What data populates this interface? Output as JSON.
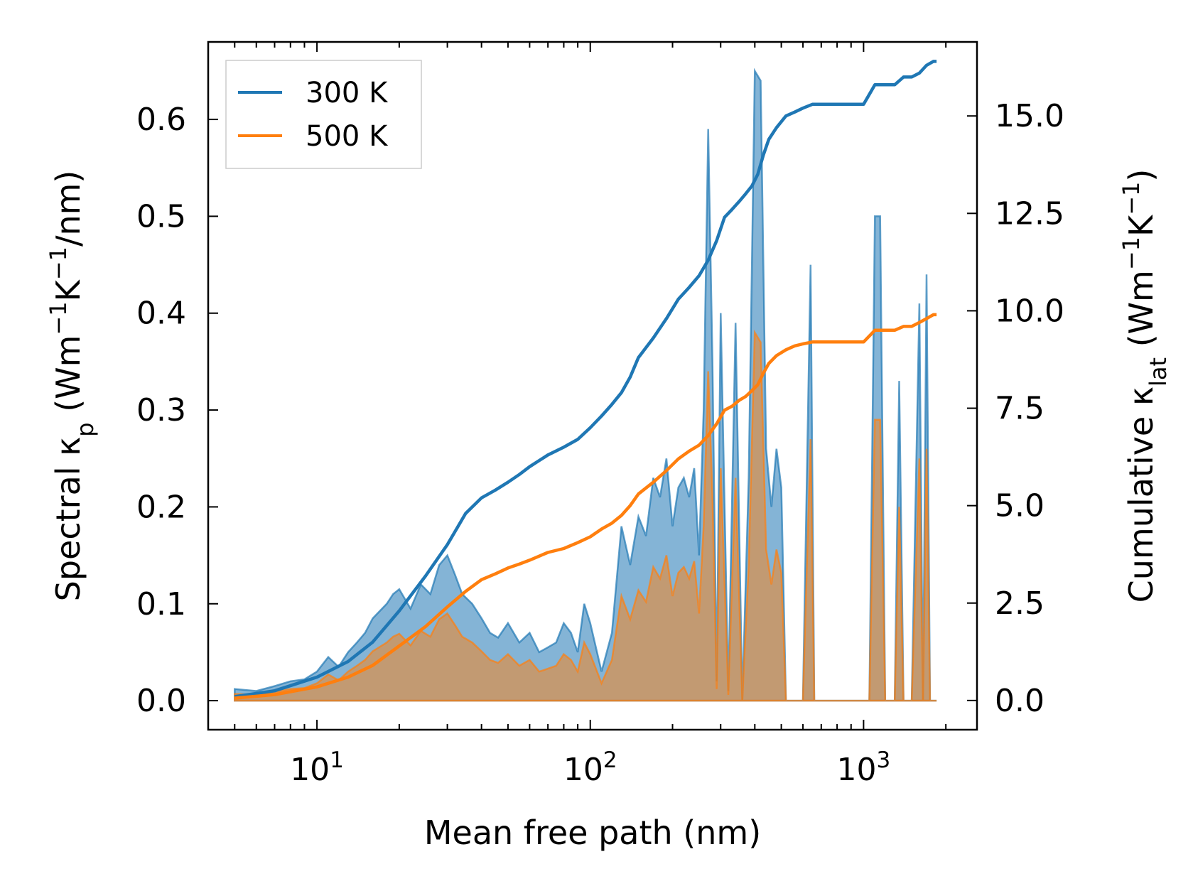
{
  "chart_data": {
    "type": "line",
    "title": "",
    "xlabel": "Mean free path (nm)",
    "ylabel_left": {
      "main": "Spectral κ",
      "sub": "p",
      "unit_open": " (Wm",
      "sup1": "−1",
      "mid": "K",
      "sup2": "−1",
      "unit_close": "/nm)"
    },
    "ylabel_right": {
      "main": "Cumulative κ",
      "sub": "lat",
      "unit_open": " (Wm",
      "sup1": "−1",
      "mid": "K",
      "sup2": "−1",
      "unit_close": ")"
    },
    "x_scale": "log",
    "xlim": [
      4.0,
      2600
    ],
    "ylim_left": [
      -0.03,
      0.68
    ],
    "ylim_right": [
      -0.75,
      16.9
    ],
    "x_ticks": [
      {
        "value": 10,
        "base": "10",
        "exp": "1"
      },
      {
        "value": 100,
        "base": "10",
        "exp": "2"
      },
      {
        "value": 1000,
        "base": "10",
        "exp": "3"
      }
    ],
    "y_ticks_left": [
      "0.0",
      "0.1",
      "0.2",
      "0.3",
      "0.4",
      "0.5",
      "0.6"
    ],
    "y_ticks_right": [
      "0.0",
      "2.5",
      "5.0",
      "7.5",
      "10.0",
      "12.5",
      "15.0"
    ],
    "legend": {
      "position": "top-left",
      "entries": [
        "300 K",
        "500 K"
      ]
    },
    "series": [
      {
        "name": "300 K",
        "color": "#1f77b4",
        "fill_color": "#1f77b4",
        "spectral": {
          "x": [
            5,
            6,
            7,
            8,
            9,
            10,
            11,
            12,
            13,
            14,
            15,
            16,
            18,
            19,
            20,
            22,
            24,
            26,
            28,
            30,
            32,
            34,
            37,
            40,
            43,
            46,
            50,
            55,
            60,
            65,
            70,
            75,
            80,
            85,
            90,
            95,
            100,
            110,
            120,
            130,
            140,
            150,
            160,
            170,
            180,
            190,
            200,
            210,
            220,
            230,
            240,
            250,
            260,
            270,
            280,
            290,
            300,
            320,
            340,
            360,
            380,
            400,
            420,
            440,
            460,
            480,
            500,
            520,
            550,
            600,
            640,
            660,
            680,
            700,
            750,
            800,
            900,
            1000,
            1050,
            1100,
            1150,
            1200,
            1250,
            1300,
            1350,
            1400,
            1450,
            1500,
            1600,
            1650,
            1700,
            1750,
            1800,
            1850
          ],
          "y": [
            0.012,
            0.01,
            0.015,
            0.02,
            0.022,
            0.03,
            0.045,
            0.035,
            0.05,
            0.06,
            0.07,
            0.085,
            0.1,
            0.11,
            0.115,
            0.095,
            0.12,
            0.11,
            0.14,
            0.15,
            0.13,
            0.11,
            0.1,
            0.085,
            0.07,
            0.065,
            0.08,
            0.06,
            0.07,
            0.05,
            0.055,
            0.06,
            0.08,
            0.07,
            0.05,
            0.1,
            0.08,
            0.03,
            0.07,
            0.18,
            0.14,
            0.19,
            0.17,
            0.23,
            0.21,
            0.25,
            0.18,
            0.22,
            0.23,
            0.21,
            0.24,
            0.15,
            0.3,
            0.59,
            0.35,
            0.02,
            0.4,
            0.01,
            0.39,
            0.0,
            0.23,
            0.65,
            0.64,
            0.26,
            0.2,
            0.26,
            0.22,
            0.0,
            0.0,
            0.0,
            0.45,
            0.0,
            0.0,
            0.0,
            0.0,
            0.0,
            0.0,
            0.0,
            0.0,
            0.5,
            0.5,
            0.0,
            0.0,
            0.0,
            0.33,
            0.0,
            0.0,
            0.0,
            0.41,
            0.0,
            0.44,
            0.0,
            0.0,
            0.0
          ]
        },
        "cumulative": {
          "x": [
            5,
            7,
            10,
            13,
            16,
            20,
            25,
            30,
            35,
            40,
            45,
            50,
            55,
            60,
            70,
            80,
            90,
            100,
            110,
            120,
            130,
            140,
            150,
            170,
            190,
            210,
            230,
            250,
            270,
            290,
            310,
            330,
            350,
            370,
            390,
            410,
            430,
            450,
            480,
            520,
            560,
            600,
            650,
            700,
            800,
            900,
            1000,
            1100,
            1200,
            1300,
            1400,
            1500,
            1600,
            1700,
            1800,
            1850
          ],
          "y": [
            0.1,
            0.25,
            0.6,
            1.0,
            1.5,
            2.3,
            3.2,
            4.0,
            4.8,
            5.2,
            5.4,
            5.6,
            5.8,
            6.0,
            6.3,
            6.5,
            6.7,
            7.0,
            7.3,
            7.6,
            7.9,
            8.3,
            8.8,
            9.3,
            9.8,
            10.3,
            10.6,
            10.9,
            11.3,
            11.8,
            12.4,
            12.6,
            12.8,
            13.0,
            13.2,
            13.5,
            14.0,
            14.4,
            14.7,
            15.0,
            15.1,
            15.2,
            15.3,
            15.3,
            15.3,
            15.3,
            15.3,
            15.8,
            15.8,
            15.8,
            16.0,
            16.0,
            16.1,
            16.3,
            16.4,
            16.4
          ]
        }
      },
      {
        "name": "500 K",
        "color": "#ff7f0e",
        "fill_color": "#ff7f0e",
        "spectral": {
          "x": [
            5,
            6,
            7,
            8,
            9,
            10,
            11,
            12,
            13,
            14,
            15,
            16,
            18,
            19,
            20,
            22,
            24,
            26,
            28,
            30,
            32,
            34,
            37,
            40,
            43,
            46,
            50,
            55,
            60,
            65,
            70,
            75,
            80,
            85,
            90,
            95,
            100,
            110,
            120,
            130,
            140,
            150,
            160,
            170,
            180,
            190,
            200,
            210,
            220,
            230,
            240,
            250,
            260,
            270,
            280,
            290,
            300,
            320,
            340,
            360,
            380,
            400,
            420,
            440,
            460,
            480,
            500,
            520,
            550,
            600,
            640,
            660,
            680,
            700,
            750,
            800,
            900,
            1000,
            1050,
            1100,
            1150,
            1200,
            1250,
            1300,
            1350,
            1400,
            1450,
            1500,
            1600,
            1650,
            1700,
            1750,
            1800,
            1850
          ],
          "y": [
            0.007,
            0.006,
            0.009,
            0.012,
            0.013,
            0.018,
            0.027,
            0.021,
            0.03,
            0.036,
            0.042,
            0.051,
            0.06,
            0.066,
            0.069,
            0.057,
            0.072,
            0.066,
            0.084,
            0.09,
            0.078,
            0.066,
            0.06,
            0.051,
            0.042,
            0.039,
            0.048,
            0.036,
            0.042,
            0.03,
            0.033,
            0.036,
            0.048,
            0.042,
            0.03,
            0.06,
            0.048,
            0.018,
            0.042,
            0.108,
            0.084,
            0.114,
            0.102,
            0.138,
            0.126,
            0.15,
            0.108,
            0.132,
            0.138,
            0.126,
            0.144,
            0.09,
            0.18,
            0.34,
            0.21,
            0.012,
            0.24,
            0.006,
            0.23,
            0.0,
            0.14,
            0.38,
            0.37,
            0.156,
            0.12,
            0.156,
            0.132,
            0.0,
            0.0,
            0.0,
            0.27,
            0.0,
            0.0,
            0.0,
            0.0,
            0.0,
            0.0,
            0.0,
            0.0,
            0.29,
            0.29,
            0.0,
            0.0,
            0.0,
            0.2,
            0.0,
            0.0,
            0.0,
            0.25,
            0.0,
            0.26,
            0.0,
            0.0,
            0.0
          ]
        },
        "cumulative": {
          "x": [
            5,
            7,
            10,
            13,
            16,
            20,
            25,
            30,
            35,
            40,
            45,
            50,
            55,
            60,
            70,
            80,
            90,
            100,
            110,
            120,
            130,
            140,
            150,
            170,
            190,
            210,
            230,
            250,
            270,
            290,
            310,
            330,
            350,
            370,
            390,
            410,
            430,
            450,
            480,
            520,
            560,
            600,
            650,
            700,
            800,
            900,
            1000,
            1100,
            1200,
            1300,
            1400,
            1500,
            1600,
            1700,
            1800,
            1850
          ],
          "y": [
            0.06,
            0.15,
            0.35,
            0.6,
            0.9,
            1.4,
            1.9,
            2.4,
            2.8,
            3.1,
            3.25,
            3.4,
            3.5,
            3.6,
            3.8,
            3.9,
            4.05,
            4.2,
            4.4,
            4.55,
            4.75,
            5.0,
            5.3,
            5.6,
            5.9,
            6.2,
            6.4,
            6.55,
            6.8,
            7.1,
            7.45,
            7.55,
            7.7,
            7.8,
            7.95,
            8.1,
            8.4,
            8.65,
            8.85,
            9.0,
            9.1,
            9.15,
            9.2,
            9.2,
            9.2,
            9.2,
            9.2,
            9.5,
            9.5,
            9.5,
            9.6,
            9.6,
            9.7,
            9.8,
            9.9,
            9.9
          ]
        }
      }
    ]
  }
}
